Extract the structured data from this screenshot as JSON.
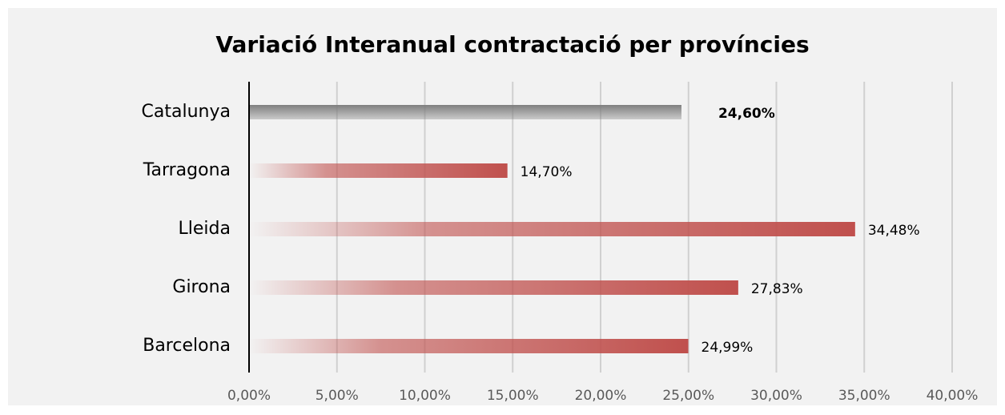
{
  "chart_data": {
    "type": "hbar",
    "title": "Variació Interanual contractació per províncies",
    "categories": [
      "Catalunya",
      "Tarragona",
      "Lleida",
      "Girona",
      "Barcelona"
    ],
    "values": [
      24.6,
      14.7,
      34.48,
      27.83,
      24.99
    ],
    "value_labels": [
      "24,60%",
      "14,70%",
      "34,48%",
      "27,83%",
      "24,99%"
    ],
    "colors": [
      "#7f7f7f",
      "#c0504d",
      "#c0504d",
      "#c0504d",
      "#c0504d"
    ],
    "xlim": [
      0,
      40
    ],
    "xticks": [
      {
        "value": 0,
        "label": "0,00%"
      },
      {
        "value": 5,
        "label": "5,00%"
      },
      {
        "value": 10,
        "label": "10,00%"
      },
      {
        "value": 15,
        "label": "15,00%"
      },
      {
        "value": 20,
        "label": "20,00%"
      },
      {
        "value": 25,
        "label": "25,00%"
      },
      {
        "value": 30,
        "label": "30,00%"
      },
      {
        "value": 35,
        "label": "35,00%"
      },
      {
        "value": 40,
        "label": "40,00%"
      }
    ],
    "grid": true
  }
}
